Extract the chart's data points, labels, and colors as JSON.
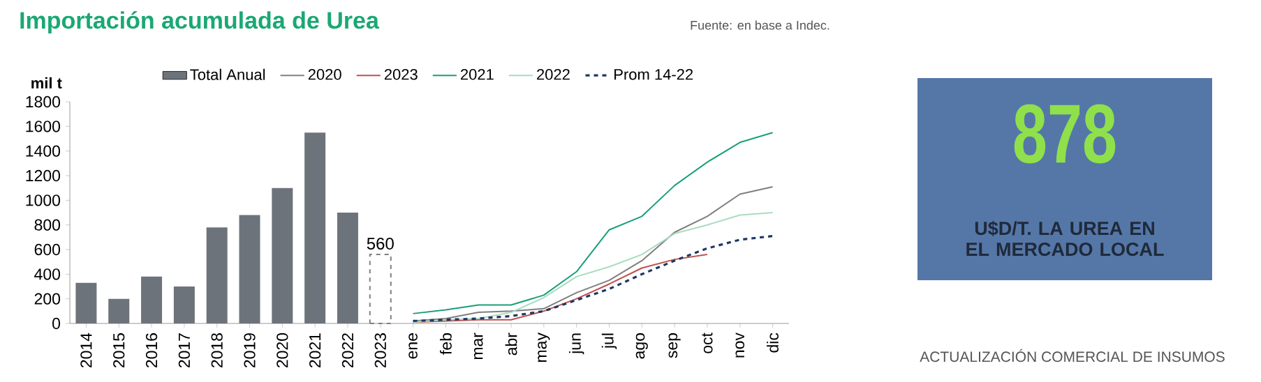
{
  "chart_data": [
    {
      "type": "bar",
      "title": "Importación acumulada de Urea",
      "ylabel": "mil t",
      "categories": [
        "2014",
        "2015",
        "2016",
        "2017",
        "2018",
        "2019",
        "2020",
        "2021",
        "2022",
        "2023",
        "ene",
        "feb",
        "mar",
        "abr",
        "may",
        "jun",
        "jul",
        "ago",
        "sep",
        "oct",
        "nov",
        "dic"
      ],
      "series": [
        {
          "name": "Total Anual",
          "type": "bar",
          "color": "#6d737a",
          "values": [
            330,
            200,
            380,
            300,
            780,
            880,
            1100,
            1550,
            900,
            null,
            null,
            null,
            null,
            null,
            null,
            null,
            null,
            null,
            null,
            null,
            null,
            null
          ]
        },
        {
          "type": "bar",
          "color": "#7f7f7f",
          "line_style": "dashed",
          "values": [
            null,
            null,
            null,
            null,
            null,
            null,
            null,
            null,
            null,
            560,
            null,
            null,
            null,
            null,
            null,
            null,
            null,
            null,
            null,
            null,
            null,
            null
          ],
          "value_labels": [
            null,
            null,
            null,
            null,
            null,
            null,
            null,
            null,
            null,
            "560",
            null,
            null,
            null,
            null,
            null,
            null,
            null,
            null,
            null,
            null,
            null,
            null
          ]
        },
        {
          "name": "2020",
          "type": "line",
          "color": "#7f7f7f",
          "values": [
            null,
            null,
            null,
            null,
            null,
            null,
            null,
            null,
            null,
            null,
            20,
            40,
            90,
            100,
            120,
            250,
            350,
            510,
            740,
            870,
            1050,
            1110
          ]
        },
        {
          "name": "2023",
          "type": "line",
          "color": "#c0504d",
          "values": [
            null,
            null,
            null,
            null,
            null,
            null,
            null,
            null,
            null,
            null,
            10,
            20,
            30,
            30,
            100,
            200,
            320,
            450,
            520,
            560,
            null,
            null
          ]
        },
        {
          "name": "2021",
          "type": "line",
          "color": "#1a9e7a",
          "values": [
            null,
            null,
            null,
            null,
            null,
            null,
            null,
            null,
            null,
            null,
            80,
            110,
            150,
            150,
            230,
            420,
            760,
            870,
            1120,
            1310,
            1470,
            1550
          ]
        },
        {
          "name": "2022",
          "type": "line",
          "color": "#a8dcc0",
          "values": [
            null,
            null,
            null,
            null,
            null,
            null,
            null,
            null,
            null,
            null,
            10,
            30,
            40,
            90,
            210,
            380,
            460,
            560,
            730,
            800,
            880,
            900
          ]
        },
        {
          "name": "Prom 14-22",
          "type": "line",
          "color": "#1f3864",
          "line_style": "dashed",
          "values": [
            null,
            null,
            null,
            null,
            null,
            null,
            null,
            null,
            null,
            null,
            20,
            30,
            40,
            60,
            100,
            190,
            280,
            400,
            510,
            610,
            680,
            710
          ]
        }
      ],
      "ylim": [
        0,
        1800
      ],
      "yticks": [
        0,
        200,
        400,
        600,
        800,
        1000,
        1200,
        1400,
        1600,
        1800
      ],
      "legend": "top",
      "grid": false,
      "annotations": [
        "Fuente: en base a Indec."
      ]
    },
    {
      "type": "other",
      "title": "878",
      "subtitle": "U$D/T. LA UREA EN EL MERCADO LOCAL",
      "annotations": [
        "ACTUALIZACIÓN COMERCIAL DE INSUMOS"
      ]
    }
  ]
}
